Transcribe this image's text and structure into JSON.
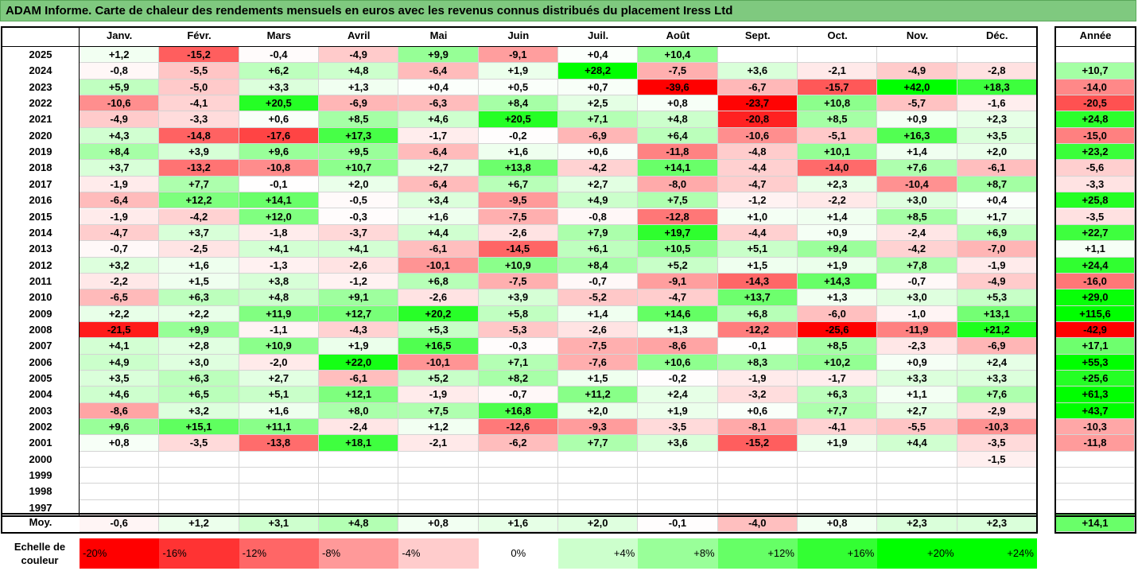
{
  "title": "ADAM Informe. Carte de chaleur des rendements mensuels en euros avec les revenus connus distribués du placement Iress Ltd",
  "chart_data": {
    "type": "heatmap",
    "months": [
      "Janv.",
      "Févr.",
      "Mars",
      "Avril",
      "Mai",
      "Juin",
      "Juil.",
      "Août",
      "Sept.",
      "Oct.",
      "Nov.",
      "Déc."
    ],
    "year_col_label": "Année",
    "years": [
      "2025",
      "2024",
      "2023",
      "2022",
      "2021",
      "2020",
      "2019",
      "2018",
      "2017",
      "2016",
      "2015",
      "2014",
      "2013",
      "2012",
      "2011",
      "2010",
      "2009",
      "2008",
      "2007",
      "2006",
      "2005",
      "2004",
      "2003",
      "2002",
      "2001",
      "2000",
      "1999",
      "1998",
      "1997"
    ],
    "values": [
      [
        "+1,2",
        "-15,2",
        "-0,4",
        "-4,9",
        "+9,9",
        "-9,1",
        "+0,4",
        "+10,4",
        "",
        "",
        "",
        ""
      ],
      [
        "-0,8",
        "-5,5",
        "+6,2",
        "+4,8",
        "-6,4",
        "+1,9",
        "+28,2",
        "-7,5",
        "+3,6",
        "-2,1",
        "-4,9",
        "-2,8"
      ],
      [
        "+5,9",
        "-5,0",
        "+3,3",
        "+1,3",
        "+0,4",
        "+0,5",
        "+0,7",
        "-39,6",
        "-6,7",
        "-15,7",
        "+42,0",
        "+18,3"
      ],
      [
        "-10,6",
        "-4,1",
        "+20,5",
        "-6,9",
        "-6,3",
        "+8,4",
        "+2,5",
        "+0,8",
        "-23,7",
        "+10,8",
        "-5,7",
        "-1,6"
      ],
      [
        "-4,9",
        "-3,3",
        "+0,6",
        "+8,5",
        "+4,6",
        "+20,5",
        "+7,1",
        "+4,8",
        "-20,8",
        "+8,5",
        "+0,9",
        "+2,3"
      ],
      [
        "+4,3",
        "-14,8",
        "-17,6",
        "+17,3",
        "-1,7",
        "-0,2",
        "-6,9",
        "+6,4",
        "-10,6",
        "-5,1",
        "+16,3",
        "+3,5"
      ],
      [
        "+8,4",
        "+3,9",
        "+9,6",
        "+9,5",
        "-6,4",
        "+1,6",
        "+0,6",
        "-11,8",
        "-4,8",
        "+10,1",
        "+1,4",
        "+2,0"
      ],
      [
        "+3,7",
        "-13,2",
        "-10,8",
        "+10,7",
        "+2,7",
        "+13,8",
        "-4,2",
        "+14,1",
        "-4,4",
        "-14,0",
        "+7,6",
        "-6,1"
      ],
      [
        "-1,9",
        "+7,7",
        "-0,1",
        "+2,0",
        "-6,4",
        "+6,7",
        "+2,7",
        "-8,0",
        "-4,7",
        "+2,3",
        "-10,4",
        "+8,7"
      ],
      [
        "-6,4",
        "+12,2",
        "+14,1",
        "-0,5",
        "+3,4",
        "-9,5",
        "+4,9",
        "+7,5",
        "-1,2",
        "-2,2",
        "+3,0",
        "+0,4"
      ],
      [
        "-1,9",
        "-4,2",
        "+12,0",
        "-0,3",
        "+1,6",
        "-7,5",
        "-0,8",
        "-12,8",
        "+1,0",
        "+1,4",
        "+8,5",
        "+1,7"
      ],
      [
        "-4,7",
        "+3,7",
        "-1,8",
        "-3,7",
        "+4,4",
        "-2,6",
        "+7,9",
        "+19,7",
        "-4,4",
        "+0,9",
        "-2,4",
        "+6,9"
      ],
      [
        "-0,7",
        "-2,5",
        "+4,1",
        "+4,1",
        "-6,1",
        "-14,5",
        "+6,1",
        "+10,5",
        "+5,1",
        "+9,4",
        "-4,2",
        "-7,0"
      ],
      [
        "+3,2",
        "+1,6",
        "-1,3",
        "-2,6",
        "-10,1",
        "+10,9",
        "+8,4",
        "+5,2",
        "+1,5",
        "+1,9",
        "+7,8",
        "-1,9"
      ],
      [
        "-2,2",
        "+1,5",
        "+3,8",
        "-1,2",
        "+6,8",
        "-7,5",
        "-0,7",
        "-9,1",
        "-14,3",
        "+14,3",
        "-0,7",
        "-4,9"
      ],
      [
        "-6,5",
        "+6,3",
        "+4,8",
        "+9,1",
        "-2,6",
        "+3,9",
        "-5,2",
        "-4,7",
        "+13,7",
        "+1,3",
        "+3,0",
        "+5,3"
      ],
      [
        "+2,2",
        "+2,2",
        "+11,9",
        "+12,7",
        "+20,2",
        "+5,8",
        "+1,4",
        "+14,6",
        "+6,8",
        "-6,0",
        "-1,0",
        "+13,1"
      ],
      [
        "-21,5",
        "+9,9",
        "-1,1",
        "-4,3",
        "+5,3",
        "-5,3",
        "-2,6",
        "+1,3",
        "-12,2",
        "-25,6",
        "-11,9",
        "+21,2"
      ],
      [
        "+4,1",
        "+2,8",
        "+10,9",
        "+1,9",
        "+16,5",
        "-0,3",
        "-7,5",
        "-8,6",
        "-0,1",
        "+8,5",
        "-2,3",
        "-6,9"
      ],
      [
        "+4,9",
        "+3,0",
        "-2,0",
        "+22,0",
        "-10,1",
        "+7,1",
        "-7,6",
        "+10,6",
        "+8,3",
        "+10,2",
        "+0,9",
        "+2,4"
      ],
      [
        "+3,5",
        "+6,3",
        "+2,7",
        "-6,1",
        "+5,2",
        "+8,2",
        "+1,5",
        "-0,2",
        "-1,9",
        "-1,7",
        "+3,3",
        "+3,3"
      ],
      [
        "+4,6",
        "+6,5",
        "+5,1",
        "+12,1",
        "-1,9",
        "-0,7",
        "+11,2",
        "+2,4",
        "-3,2",
        "+6,3",
        "+1,1",
        "+7,6"
      ],
      [
        "-8,6",
        "+3,2",
        "+1,6",
        "+8,0",
        "+7,5",
        "+16,8",
        "+2,0",
        "+1,9",
        "+0,6",
        "+7,7",
        "+2,7",
        "-2,9"
      ],
      [
        "+9,6",
        "+15,1",
        "+11,1",
        "-2,4",
        "+1,2",
        "-12,6",
        "-9,3",
        "-3,5",
        "-8,1",
        "-4,1",
        "-5,5",
        "-10,3"
      ],
      [
        "+0,8",
        "-3,5",
        "-13,8",
        "+18,1",
        "-2,1",
        "-6,2",
        "+7,7",
        "+3,6",
        "-15,2",
        "+1,9",
        "+4,4",
        "-3,5"
      ],
      [
        "",
        "",
        "",
        "",
        "",
        "",
        "",
        "",
        "",
        "",
        "",
        "-1,5"
      ],
      [
        "",
        "",
        "",
        "",
        "",
        "",
        "",
        "",
        "",
        "",
        "",
        ""
      ],
      [
        "",
        "",
        "",
        "",
        "",
        "",
        "",
        "",
        "",
        "",
        "",
        ""
      ],
      [
        "",
        "",
        "",
        "",
        "",
        "",
        "",
        "",
        "",
        "",
        "",
        ""
      ]
    ],
    "annual": [
      "",
      "+10,7",
      "-14,0",
      "-20,5",
      "+24,8",
      "-15,0",
      "+23,2",
      "-5,6",
      "-3,3",
      "+25,8",
      "-3,5",
      "+22,7",
      "+1,1",
      "+24,4",
      "-16,0",
      "+29,0",
      "+115,6",
      "-42,9",
      "+17,1",
      "+55,3",
      "+25,6",
      "+61,3",
      "+43,7",
      "-10,3",
      "-11,8",
      "",
      "",
      "",
      ""
    ],
    "avg_label": "Moy.",
    "averages": [
      "-0,6",
      "+1,2",
      "+3,1",
      "+4,8",
      "+0,8",
      "+1,6",
      "+2,0",
      "-0,1",
      "-4,0",
      "+0,8",
      "+2,3",
      "+2,3"
    ],
    "annual_avg": "+14,1",
    "scale_label": "Echelle de couleur",
    "scale": [
      {
        "label": "-20%",
        "value": -20
      },
      {
        "label": "-16%",
        "value": -16
      },
      {
        "label": "-12%",
        "value": -12
      },
      {
        "label": "-8%",
        "value": -8
      },
      {
        "label": "-4%",
        "value": -4
      },
      {
        "label": "0%",
        "value": 0
      },
      {
        "label": "+4%",
        "value": 4
      },
      {
        "label": "+8%",
        "value": 8
      },
      {
        "label": "+12%",
        "value": 12
      },
      {
        "label": "+16%",
        "value": 16
      },
      {
        "label": "+20%",
        "value": 20
      },
      {
        "label": "+24%",
        "value": 24
      }
    ]
  },
  "colors": {
    "title_bg": "#7fc97f",
    "neg_max": "#ff0000",
    "pos_max": "#00ff00",
    "neutral": "#ffffff"
  }
}
